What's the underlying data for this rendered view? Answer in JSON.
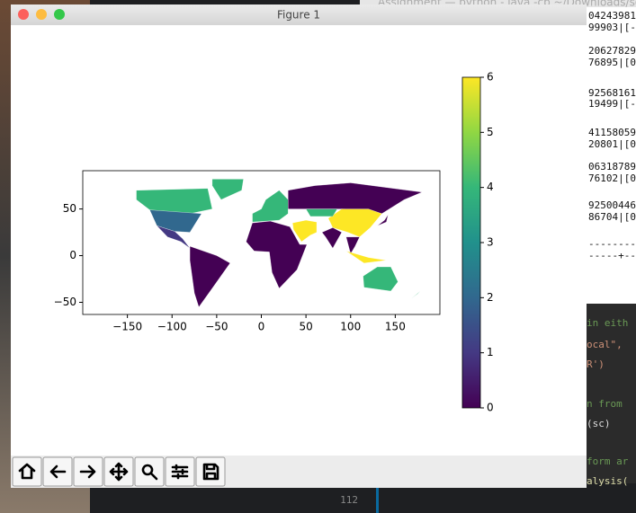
{
  "window": {
    "title": "Figure 1"
  },
  "background": {
    "title": "Assignment — python - java -cp ~/Downloads/so",
    "terminal": [
      "04243981",
      "99903|[-",
      "20627829",
      "76895|[0",
      "92568161",
      "19499|[-",
      "41158059",
      "20801|[0",
      "06318789",
      "76102|[0",
      "92500446",
      "86704|[0",
      "---------",
      "-----+---"
    ],
    "code": [
      "in eith",
      "ocal\",",
      "R')",
      "n from",
      "(sc)",
      "form ar",
      "alysis("
    ],
    "line_number": "112"
  },
  "chart_data": {
    "type": "choropleth",
    "xlim": [
      -200,
      200
    ],
    "ylim": [
      -63,
      91
    ],
    "xticks": [
      {
        "value": -150,
        "label": "−150"
      },
      {
        "value": -100,
        "label": "−100"
      },
      {
        "value": -50,
        "label": "−50"
      },
      0,
      50,
      100,
      150
    ],
    "yticks": [
      {
        "value": -50,
        "label": "−50"
      },
      0,
      50
    ],
    "values": [
      4,
      2,
      4,
      0,
      1,
      0,
      4,
      0,
      6,
      0,
      6,
      4,
      0,
      6,
      4,
      4,
      0
    ],
    "colormap": "viridis",
    "colorbar": {
      "lim": [
        0,
        6
      ],
      "ticks": [
        0,
        1,
        2,
        3,
        4,
        5,
        6
      ]
    }
  }
}
